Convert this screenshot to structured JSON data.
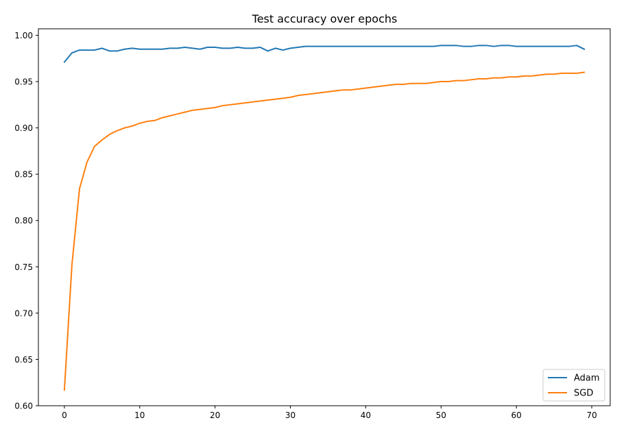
{
  "chart_data": {
    "type": "line",
    "title": "Test accuracy over epochs",
    "xlabel": "",
    "ylabel": "",
    "xlim": [
      -3.45,
      72.45
    ],
    "ylim": [
      0.6,
      1.007
    ],
    "xticks": [
      0,
      10,
      20,
      30,
      40,
      50,
      60,
      70
    ],
    "yticks": [
      0.6,
      0.65,
      0.7,
      0.75,
      0.8,
      0.85,
      0.9,
      0.95,
      1.0
    ],
    "xtick_labels": [
      "0",
      "10",
      "20",
      "30",
      "40",
      "50",
      "60",
      "70"
    ],
    "ytick_labels": [
      "0.60",
      "0.65",
      "0.70",
      "0.75",
      "0.80",
      "0.85",
      "0.90",
      "0.95",
      "1.00"
    ],
    "grid": false,
    "legend_position": "bottom-right",
    "x": [
      0,
      1,
      2,
      3,
      4,
      5,
      6,
      7,
      8,
      9,
      10,
      11,
      12,
      13,
      14,
      15,
      16,
      17,
      18,
      19,
      20,
      21,
      22,
      23,
      24,
      25,
      26,
      27,
      28,
      29,
      30,
      31,
      32,
      33,
      34,
      35,
      36,
      37,
      38,
      39,
      40,
      41,
      42,
      43,
      44,
      45,
      46,
      47,
      48,
      49,
      50,
      51,
      52,
      53,
      54,
      55,
      56,
      57,
      58,
      59,
      60,
      61,
      62,
      63,
      64,
      65,
      66,
      67,
      68,
      69
    ],
    "series": [
      {
        "name": "Adam",
        "color": "#1f77b4",
        "values": [
          0.971,
          0.981,
          0.984,
          0.984,
          0.984,
          0.986,
          0.983,
          0.983,
          0.985,
          0.986,
          0.985,
          0.985,
          0.985,
          0.985,
          0.986,
          0.986,
          0.987,
          0.986,
          0.985,
          0.987,
          0.987,
          0.986,
          0.986,
          0.987,
          0.986,
          0.986,
          0.987,
          0.983,
          0.986,
          0.984,
          0.986,
          0.987,
          0.988,
          0.988,
          0.988,
          0.988,
          0.988,
          0.988,
          0.988,
          0.988,
          0.988,
          0.988,
          0.988,
          0.988,
          0.988,
          0.988,
          0.988,
          0.988,
          0.988,
          0.988,
          0.989,
          0.989,
          0.989,
          0.988,
          0.988,
          0.989,
          0.989,
          0.988,
          0.989,
          0.989,
          0.988,
          0.988,
          0.988,
          0.988,
          0.988,
          0.988,
          0.988,
          0.988,
          0.989,
          0.985
        ]
      },
      {
        "name": "SGD",
        "color": "#ff7f0e",
        "values": [
          0.617,
          0.752,
          0.834,
          0.863,
          0.88,
          0.887,
          0.893,
          0.897,
          0.9,
          0.902,
          0.905,
          0.907,
          0.908,
          0.911,
          0.913,
          0.915,
          0.917,
          0.919,
          0.92,
          0.921,
          0.922,
          0.924,
          0.925,
          0.926,
          0.927,
          0.928,
          0.929,
          0.93,
          0.931,
          0.932,
          0.933,
          0.935,
          0.936,
          0.937,
          0.938,
          0.939,
          0.94,
          0.941,
          0.941,
          0.942,
          0.943,
          0.944,
          0.945,
          0.946,
          0.947,
          0.947,
          0.948,
          0.948,
          0.948,
          0.949,
          0.95,
          0.95,
          0.951,
          0.951,
          0.952,
          0.953,
          0.953,
          0.954,
          0.954,
          0.955,
          0.955,
          0.956,
          0.956,
          0.957,
          0.958,
          0.958,
          0.959,
          0.959,
          0.959,
          0.96
        ]
      }
    ]
  }
}
